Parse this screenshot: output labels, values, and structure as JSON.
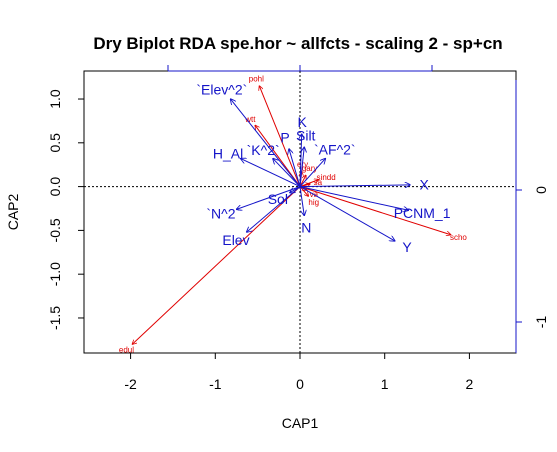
{
  "chart_data": {
    "type": "scatter",
    "title": "Dry Biplot RDA spe.hor ~ allfcts - scaling 2 - sp+cn",
    "xlabel": "CAP1",
    "ylabel": "CAP2",
    "xlim": [
      -2.55,
      2.55
    ],
    "ylim": [
      -1.9,
      1.32
    ],
    "x_ticks": [
      -2,
      -1,
      0,
      1,
      2
    ],
    "y_ticks": [
      -1.5,
      -1.0,
      -0.5,
      0.0,
      0.5,
      1.0
    ],
    "right_ticks": [
      "0",
      "-1"
    ],
    "colors": {
      "species": "#e00000",
      "constraints": "#1414c8",
      "axis": "#000000",
      "right_axis": "#1414c8"
    },
    "species_arrows": [
      {
        "label": "pohl",
        "x": -0.48,
        "y": 1.15
      },
      {
        "label": "wtt",
        "x": -0.53,
        "y": 0.7
      },
      {
        "label": "scho",
        "x": 1.78,
        "y": -0.55
      },
      {
        "label": "edul",
        "x": -1.98,
        "y": -1.8
      },
      {
        "label": "gary",
        "x": 0.07,
        "y": 0.13
      },
      {
        "label": "sindd",
        "x": 0.22,
        "y": 0.08
      },
      {
        "label": "sa",
        "x": 0.12,
        "y": 0.03
      },
      {
        "label": "ery",
        "x": 0.02,
        "y": 0.17
      },
      {
        "label": "hig",
        "x": 0.1,
        "y": -0.11
      },
      {
        "label": "va",
        "x": 0.08,
        "y": -0.04
      }
    ],
    "constraint_arrows": [
      {
        "label": "`Elev^2`",
        "x": -0.82,
        "y": 1.0
      },
      {
        "label": "H_Al",
        "x": -0.7,
        "y": 0.32
      },
      {
        "label": "`K^2`",
        "x": -0.32,
        "y": 0.32
      },
      {
        "label": "P",
        "x": -0.13,
        "y": 0.43
      },
      {
        "label": "K",
        "x": 0.02,
        "y": 0.6
      },
      {
        "label": "Silt",
        "x": 0.05,
        "y": 0.45
      },
      {
        "label": "`AF^2`",
        "x": 0.3,
        "y": 0.32
      },
      {
        "label": "X",
        "x": 1.3,
        "y": 0.02
      },
      {
        "label": "PCNM_1",
        "x": 1.28,
        "y": -0.27
      },
      {
        "label": "Y",
        "x": 1.12,
        "y": -0.62
      },
      {
        "label": "N",
        "x": 0.05,
        "y": -0.33
      },
      {
        "label": "Elev",
        "x": -0.63,
        "y": -0.52
      },
      {
        "label": "`N^2`",
        "x": -0.75,
        "y": -0.26
      },
      {
        "label": "Sol",
        "x": -0.12,
        "y": -0.07
      }
    ]
  }
}
